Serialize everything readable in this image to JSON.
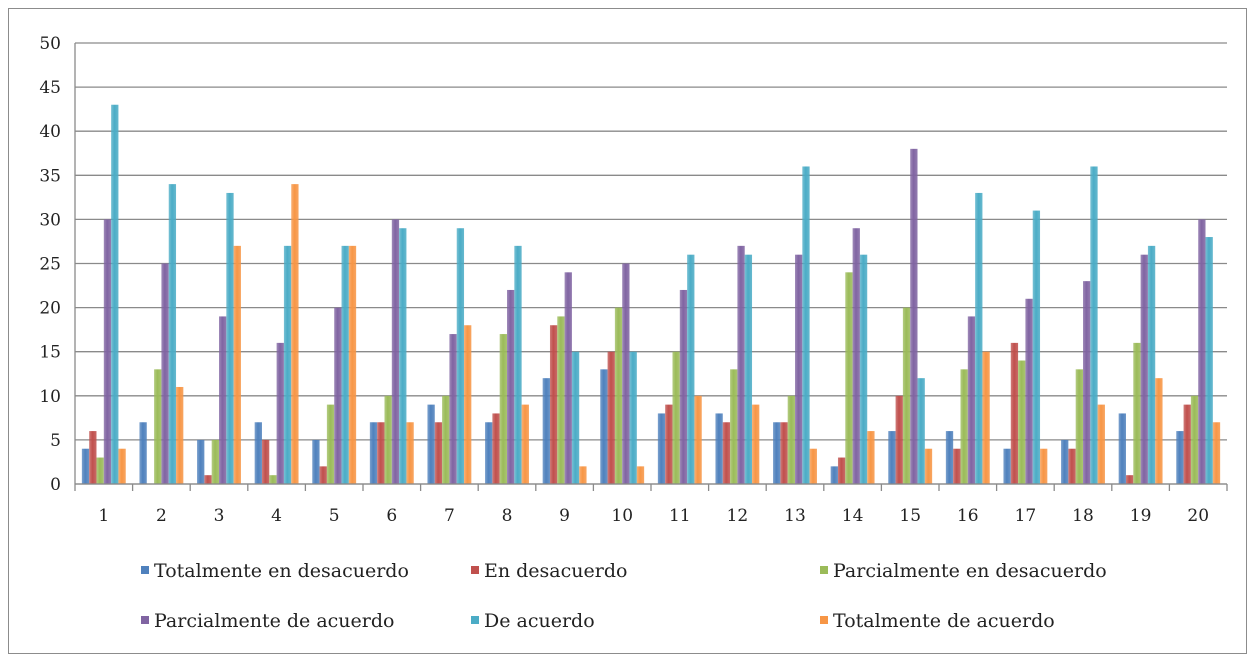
{
  "chart_data": {
    "type": "bar",
    "categories": [
      "1",
      "2",
      "3",
      "4",
      "5",
      "6",
      "7",
      "8",
      "9",
      "10",
      "11",
      "12",
      "13",
      "14",
      "15",
      "16",
      "17",
      "18",
      "19",
      "20"
    ],
    "ylim": [
      0,
      50
    ],
    "yticks": [
      0,
      5,
      10,
      15,
      20,
      25,
      30,
      35,
      40,
      45,
      50
    ],
    "grid": true,
    "legend_position": "bottom",
    "series": [
      {
        "name": "Totalmente en desacuerdo",
        "color": "#4f81bd",
        "values": [
          4,
          7,
          5,
          7,
          5,
          7,
          9,
          7,
          12,
          13,
          8,
          8,
          7,
          2,
          6,
          6,
          4,
          5,
          8,
          6
        ]
      },
      {
        "name": "En desacuerdo",
        "color": "#c0504d",
        "values": [
          6,
          0,
          1,
          5,
          2,
          7,
          7,
          8,
          18,
          15,
          9,
          7,
          7,
          3,
          10,
          4,
          16,
          4,
          1,
          9
        ]
      },
      {
        "name": "Parcialmente en desacuerdo",
        "color": "#9bbb59",
        "values": [
          3,
          13,
          5,
          1,
          9,
          10,
          10,
          17,
          19,
          20,
          15,
          13,
          10,
          24,
          20,
          13,
          14,
          13,
          16,
          10
        ]
      },
      {
        "name": "Parcialmente de acuerdo",
        "color": "#8064a2",
        "values": [
          30,
          25,
          19,
          16,
          20,
          30,
          17,
          22,
          24,
          25,
          22,
          27,
          26,
          29,
          38,
          19,
          21,
          23,
          26,
          30
        ]
      },
      {
        "name": "De acuerdo",
        "color": "#4bacc6",
        "values": [
          43,
          34,
          33,
          27,
          27,
          29,
          29,
          27,
          15,
          15,
          26,
          26,
          36,
          26,
          12,
          33,
          31,
          36,
          27,
          28
        ]
      },
      {
        "name": "Totalmente de acuerdo",
        "color": "#f79646",
        "values": [
          4,
          11,
          27,
          34,
          27,
          7,
          18,
          9,
          2,
          2,
          10,
          9,
          4,
          6,
          4,
          15,
          4,
          9,
          12,
          7
        ]
      }
    ]
  }
}
